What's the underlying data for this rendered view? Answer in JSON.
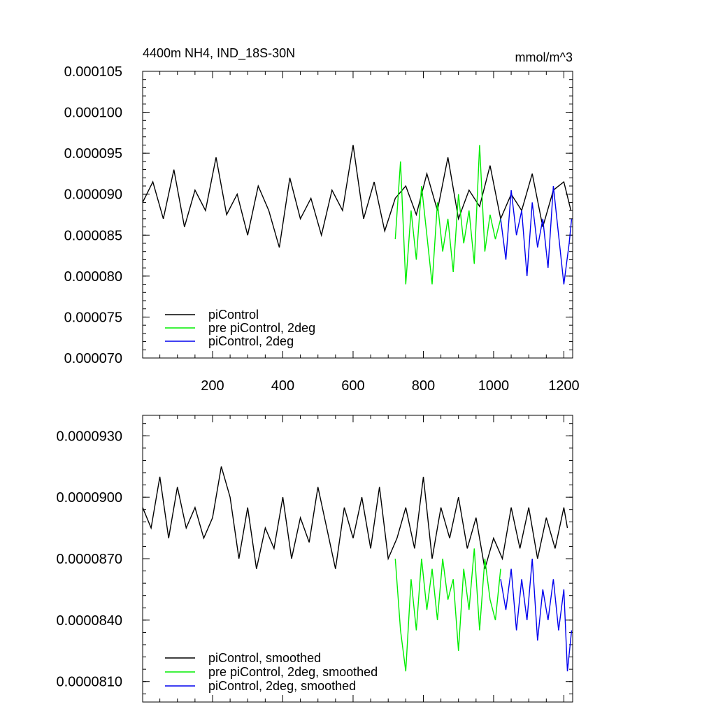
{
  "chart_data": [
    {
      "type": "line",
      "title": "4400m NH4, IND_18S-30N",
      "units": "mmol/m^3",
      "xlim": [
        1,
        1225
      ],
      "ylim": [
        7e-05,
        0.000105
      ],
      "xticks": [
        200,
        400,
        600,
        800,
        1000,
        1200
      ],
      "xtick_labels": [
        "200",
        "400",
        "600",
        "800",
        "1000",
        "1200"
      ],
      "yticks": [
        7e-05,
        7.5e-05,
        8e-05,
        8.5e-05,
        9e-05,
        9.5e-05,
        0.0001,
        0.000105
      ],
      "ytick_labels": [
        "0.000070",
        "0.000075",
        "0.000080",
        "0.000085",
        "0.000090",
        "0.000095",
        "0.000100",
        "0.000105"
      ],
      "legend_position": "bottom-left",
      "series": [
        {
          "name": "piControl",
          "color": "#000000",
          "x": [
            1,
            30,
            60,
            90,
            120,
            150,
            180,
            210,
            240,
            270,
            300,
            330,
            360,
            390,
            420,
            450,
            480,
            510,
            540,
            570,
            600,
            630,
            660,
            690,
            720,
            750,
            780,
            810,
            840,
            870,
            900,
            930,
            960,
            990,
            1020,
            1050,
            1080,
            1110,
            1140,
            1170,
            1200,
            1220
          ],
          "values": [
            8.9e-05,
            9.15e-05,
            8.7e-05,
            9.3e-05,
            8.6e-05,
            9.05e-05,
            8.8e-05,
            9.45e-05,
            8.75e-05,
            9e-05,
            8.5e-05,
            9.1e-05,
            8.8e-05,
            8.35e-05,
            9.2e-05,
            8.7e-05,
            8.95e-05,
            8.5e-05,
            9.05e-05,
            8.8e-05,
            9.6e-05,
            8.7e-05,
            9.15e-05,
            8.55e-05,
            8.95e-05,
            9.1e-05,
            8.75e-05,
            9.25e-05,
            8.8e-05,
            9.45e-05,
            8.7e-05,
            9.05e-05,
            8.85e-05,
            9.35e-05,
            8.7e-05,
            9e-05,
            8.8e-05,
            9.25e-05,
            8.6e-05,
            9.05e-05,
            9.15e-05,
            8.8e-05
          ]
        },
        {
          "name": "pre piControl, 2deg",
          "color": "#00ee00",
          "x": [
            720,
            735,
            750,
            765,
            780,
            795,
            810,
            825,
            840,
            855,
            870,
            885,
            900,
            915,
            930,
            945,
            960,
            975,
            990,
            1005,
            1020
          ],
          "values": [
            8.45e-05,
            9.4e-05,
            7.9e-05,
            8.8e-05,
            8.2e-05,
            9.1e-05,
            8.5e-05,
            7.9e-05,
            8.9e-05,
            8.3e-05,
            8.7e-05,
            8.05e-05,
            9e-05,
            8.4e-05,
            8.8e-05,
            8.15e-05,
            9.6e-05,
            8.3e-05,
            8.75e-05,
            8.45e-05,
            8.7e-05
          ]
        },
        {
          "name": "piControl, 2deg",
          "color": "#0000ee",
          "x": [
            1020,
            1035,
            1050,
            1065,
            1080,
            1095,
            1110,
            1125,
            1140,
            1155,
            1170,
            1185,
            1200,
            1215,
            1222
          ],
          "values": [
            8.7e-05,
            8.2e-05,
            9.05e-05,
            8.5e-05,
            8.8e-05,
            8e-05,
            8.9e-05,
            8.35e-05,
            8.7e-05,
            8.1e-05,
            9.1e-05,
            8.5e-05,
            7.9e-05,
            8.4e-05,
            8.7e-05
          ]
        }
      ]
    },
    {
      "type": "line",
      "title": "",
      "xlim": [
        1,
        1225
      ],
      "ylim": [
        8e-05,
        9.4e-05
      ],
      "xticks": [
        200,
        400,
        600,
        800,
        1000,
        1200
      ],
      "yticks": [
        8.1e-05,
        8.4e-05,
        8.7e-05,
        9e-05,
        9.3e-05
      ],
      "ytick_labels": [
        "0.0000810",
        "0.0000840",
        "0.0000870",
        "0.0000900",
        "0.0000930"
      ],
      "legend_position": "bottom-left",
      "series": [
        {
          "name": "piControl, smoothed",
          "color": "#000000",
          "x": [
            1,
            25,
            50,
            75,
            100,
            125,
            150,
            175,
            200,
            225,
            250,
            275,
            300,
            325,
            350,
            375,
            400,
            425,
            450,
            475,
            500,
            525,
            550,
            575,
            600,
            625,
            650,
            675,
            700,
            725,
            750,
            775,
            800,
            825,
            850,
            875,
            900,
            925,
            950,
            975,
            1000,
            1025,
            1050,
            1075,
            1100,
            1125,
            1150,
            1175,
            1200,
            1210
          ],
          "values": [
            8.95e-05,
            8.85e-05,
            9.1e-05,
            8.8e-05,
            9.05e-05,
            8.85e-05,
            8.95e-05,
            8.8e-05,
            8.9e-05,
            9.15e-05,
            9e-05,
            8.7e-05,
            8.95e-05,
            8.65e-05,
            8.85e-05,
            8.75e-05,
            9e-05,
            8.7e-05,
            8.9e-05,
            8.78e-05,
            9.05e-05,
            8.85e-05,
            8.65e-05,
            8.95e-05,
            8.8e-05,
            9e-05,
            8.75e-05,
            9.05e-05,
            8.7e-05,
            8.8e-05,
            8.95e-05,
            8.75e-05,
            9.1e-05,
            8.7e-05,
            8.95e-05,
            8.8e-05,
            9e-05,
            8.75e-05,
            8.9e-05,
            8.65e-05,
            8.8e-05,
            8.7e-05,
            8.95e-05,
            8.75e-05,
            8.95e-05,
            8.7e-05,
            8.9e-05,
            8.75e-05,
            8.95e-05,
            8.85e-05
          ]
        },
        {
          "name": "pre piControl, 2deg, smoothed",
          "color": "#00ee00",
          "x": [
            720,
            735,
            750,
            765,
            780,
            795,
            810,
            825,
            840,
            855,
            870,
            885,
            900,
            915,
            930,
            945,
            960,
            975,
            990,
            1005,
            1020
          ],
          "values": [
            8.7e-05,
            8.35e-05,
            8.15e-05,
            8.6e-05,
            8.35e-05,
            8.7e-05,
            8.45e-05,
            8.65e-05,
            8.4e-05,
            8.7e-05,
            8.5e-05,
            8.6e-05,
            8.25e-05,
            8.65e-05,
            8.45e-05,
            8.75e-05,
            8.35e-05,
            8.7e-05,
            8.5e-05,
            8.4e-05,
            8.65e-05
          ]
        },
        {
          "name": "piControl, 2deg, smoothed",
          "color": "#0000ee",
          "x": [
            1020,
            1035,
            1050,
            1065,
            1080,
            1095,
            1110,
            1125,
            1140,
            1155,
            1170,
            1185,
            1200,
            1210,
            1222
          ],
          "values": [
            8.6e-05,
            8.45e-05,
            8.65e-05,
            8.35e-05,
            8.6e-05,
            8.4e-05,
            8.7e-05,
            8.3e-05,
            8.55e-05,
            8.4e-05,
            8.6e-05,
            8.35e-05,
            8.55e-05,
            8.15e-05,
            8.35e-05
          ]
        }
      ]
    }
  ]
}
